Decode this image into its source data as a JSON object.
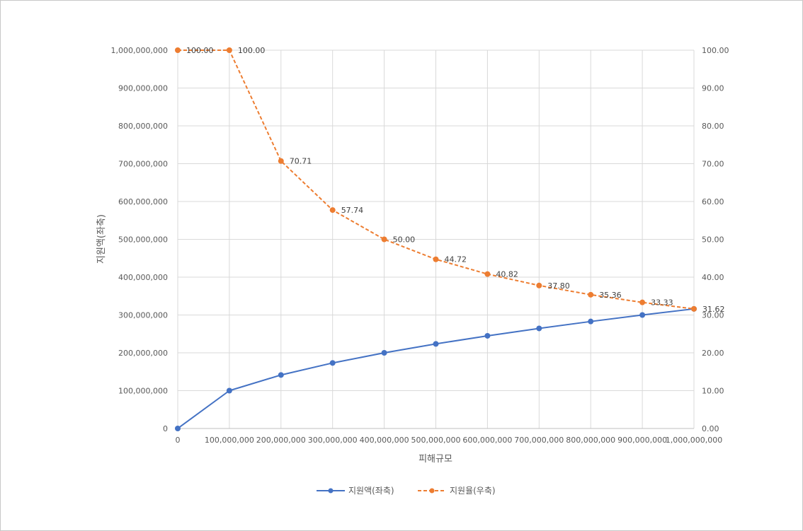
{
  "chart_data": {
    "type": "line",
    "xlabel": "피해규모",
    "ylabel": "지원액(좌축)",
    "x": [
      0,
      100000000,
      200000000,
      300000000,
      400000000,
      500000000,
      600000000,
      700000000,
      800000000,
      900000000,
      1000000000
    ],
    "x_tick_labels": [
      "0",
      "100,000,000",
      "200,000,000",
      "300,000,000",
      "400,000,000",
      "500,000,000",
      "600,000,000",
      "700,000,000",
      "800,000,000",
      "900,000,000",
      "1,000,000,000"
    ],
    "xlim": [
      0,
      1000000000
    ],
    "y_left": {
      "range": [
        0,
        1000000000
      ],
      "tick_labels": [
        "0",
        "100,000,000",
        "200,000,000",
        "300,000,000",
        "400,000,000",
        "500,000,000",
        "600,000,000",
        "700,000,000",
        "800,000,000",
        "900,000,000",
        "1,000,000,000"
      ]
    },
    "y_right": {
      "range": [
        0,
        100
      ],
      "tick_labels": [
        "0.00",
        "10.00",
        "20.00",
        "30.00",
        "40.00",
        "50.00",
        "60.00",
        "70.00",
        "80.00",
        "90.00",
        "100.00"
      ]
    },
    "grid": true,
    "legend_position": "bottom",
    "series": [
      {
        "name": "지원액(좌축)",
        "axis": "left",
        "color": "#4472C4",
        "line_style": "solid",
        "marker": "circle",
        "values": [
          0,
          100000000,
          141421356,
          173205081,
          200000000,
          223606798,
          244948974,
          264575131,
          282842712,
          300000000,
          316227766
        ]
      },
      {
        "name": "지원율(우축)",
        "axis": "right",
        "color": "#ED7D31",
        "line_style": "dashed",
        "marker": "circle",
        "values": [
          100,
          100,
          70.71,
          57.74,
          50,
          44.72,
          40.82,
          37.8,
          35.36,
          33.33,
          31.62
        ],
        "data_labels": [
          "100.00",
          "100.00",
          "70.71",
          "57.74",
          "50.00",
          "44.72",
          "40.82",
          "37.80",
          "35.36",
          "33.33",
          "31.62"
        ]
      }
    ]
  }
}
